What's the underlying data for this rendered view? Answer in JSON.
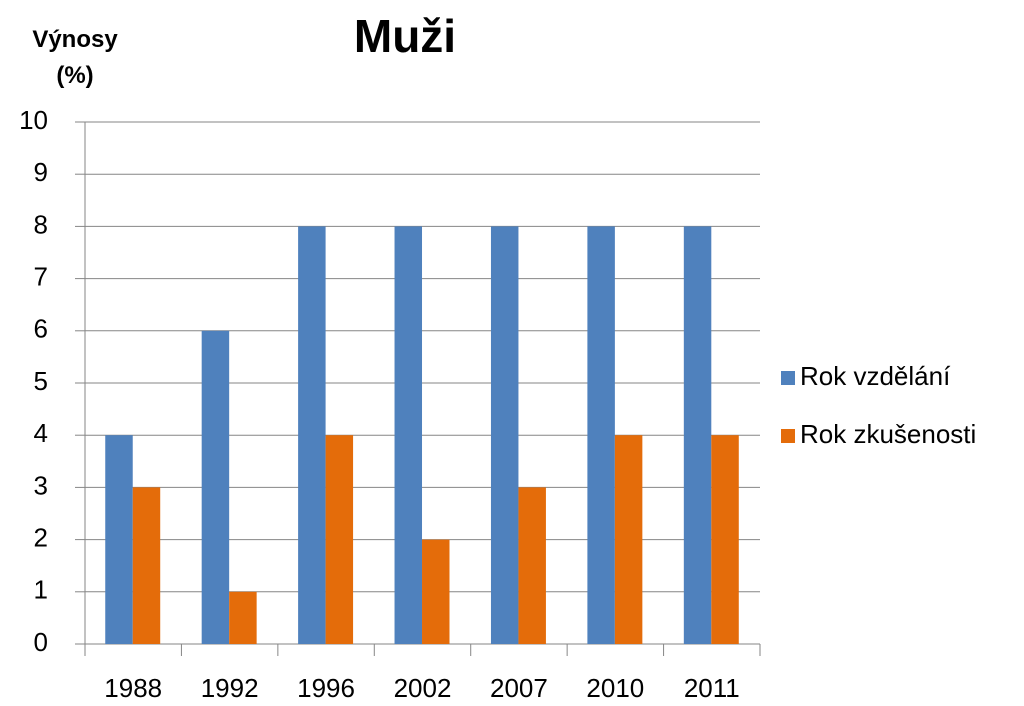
{
  "chart_data": {
    "type": "bar",
    "title": "Muži",
    "y_label": "Výnosy (%)",
    "categories": [
      "1988",
      "1992",
      "1996",
      "2002",
      "2007",
      "2010",
      "2011"
    ],
    "series": [
      {
        "name": "Rok vzdělání",
        "color": "#4f81bd",
        "values": [
          4,
          6,
          8,
          8,
          8,
          8,
          8
        ]
      },
      {
        "name": "Rok zkušenosti",
        "color": "#e46c0a",
        "values": [
          3,
          1,
          4,
          2,
          3,
          4,
          4
        ]
      }
    ],
    "ylim": [
      0,
      10
    ],
    "yticks": [
      0,
      1,
      2,
      3,
      4,
      5,
      6,
      7,
      8,
      9,
      10
    ],
    "grid": true,
    "legend": "right"
  }
}
